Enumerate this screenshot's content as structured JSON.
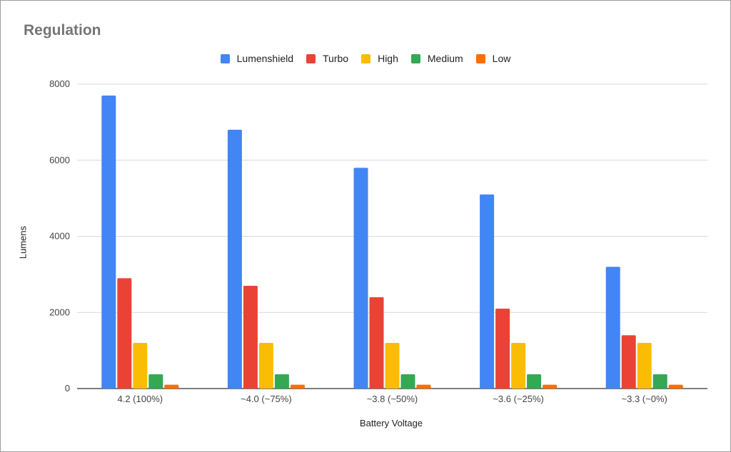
{
  "chart_data": {
    "type": "bar",
    "title": "Regulation",
    "xlabel": "Battery Voltage",
    "ylabel": "Lumens",
    "ylim": [
      0,
      8000
    ],
    "yticks": [
      0,
      2000,
      4000,
      6000,
      8000
    ],
    "grid": true,
    "legend_position": "top-center",
    "categories": [
      "4.2 (100%)",
      "~4.0 (~75%)",
      "~3.8 (~50%)",
      "~3.6 (~25%)",
      "~3.3 (~0%)"
    ],
    "series": [
      {
        "name": "Lumenshield",
        "color": "#4285f4",
        "values": [
          7700,
          6800,
          5800,
          5100,
          3200
        ]
      },
      {
        "name": "Turbo",
        "color": "#ea4335",
        "values": [
          2900,
          2700,
          2400,
          2100,
          1400
        ]
      },
      {
        "name": "High",
        "color": "#fbbc04",
        "values": [
          1200,
          1200,
          1200,
          1200,
          1200
        ]
      },
      {
        "name": "Medium",
        "color": "#34a853",
        "values": [
          375,
          375,
          375,
          375,
          375
        ]
      },
      {
        "name": "Low",
        "color": "#ff6d01",
        "values": [
          100,
          100,
          100,
          100,
          100
        ]
      }
    ]
  }
}
